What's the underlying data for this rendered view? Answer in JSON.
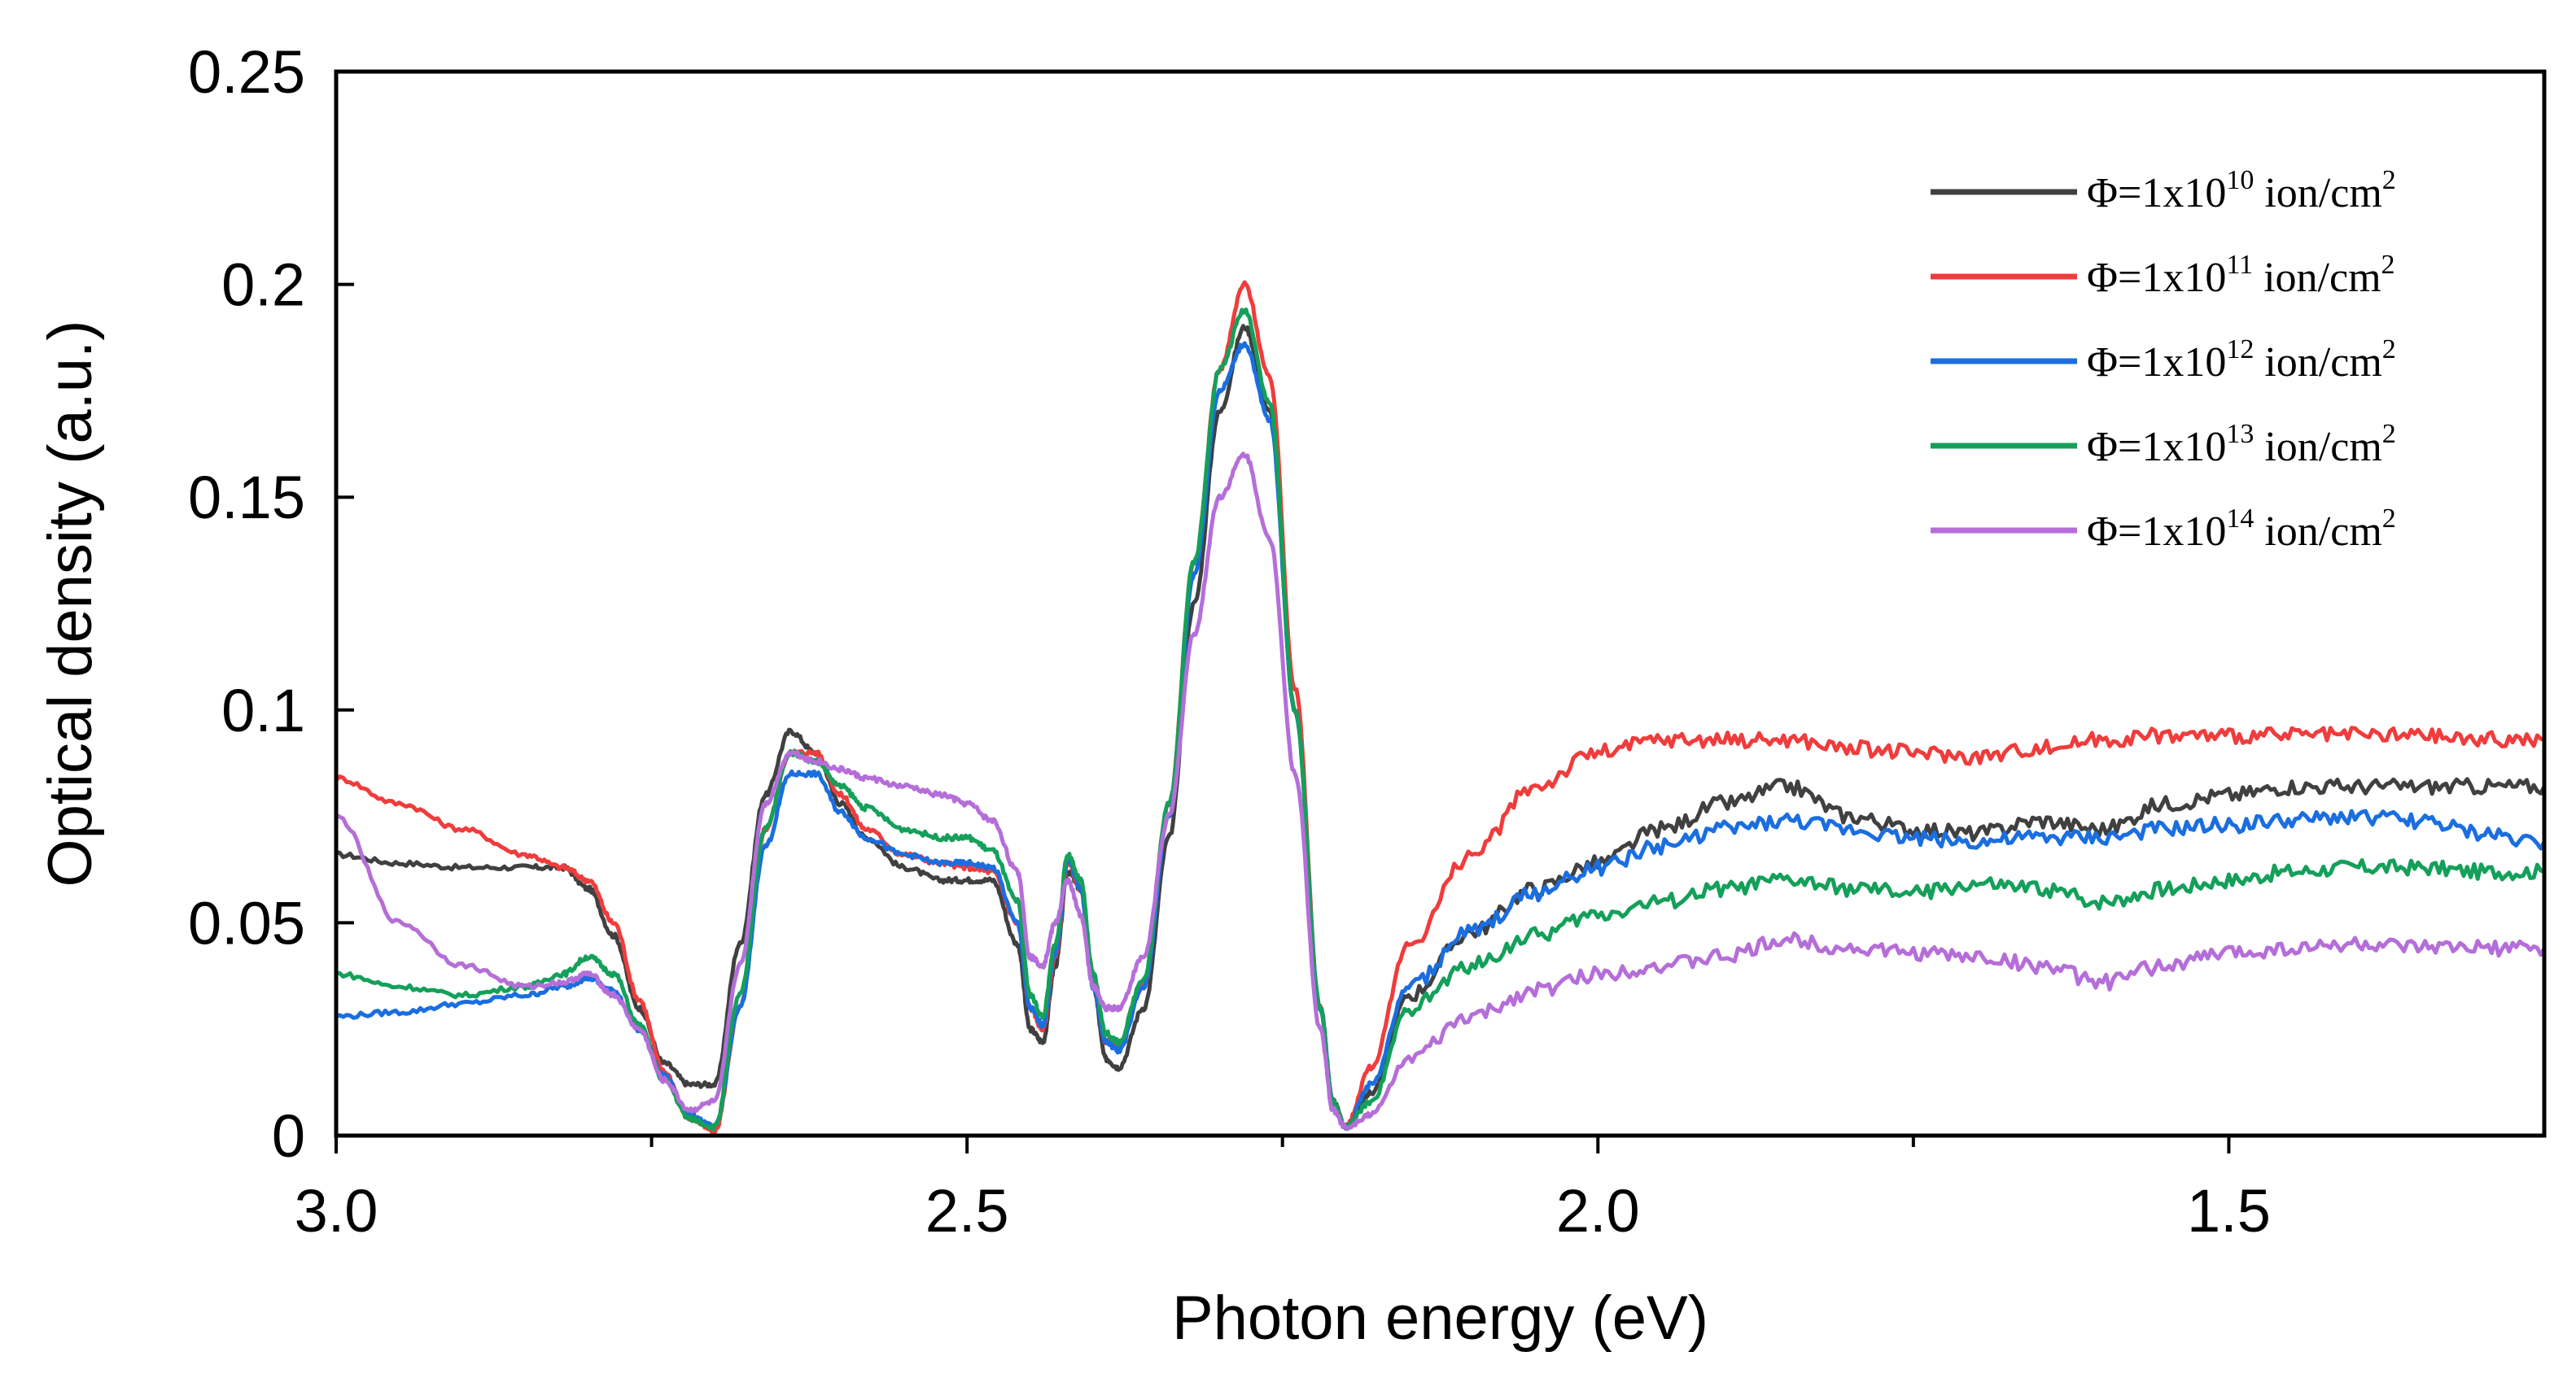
{
  "chart_data": {
    "type": "line",
    "title": "",
    "xlabel": "Photon energy (eV)",
    "ylabel": "Optical density (a.u.)",
    "xlim": [
      3.0,
      1.25
    ],
    "ylim": [
      0,
      0.25
    ],
    "x_reversed": true,
    "grid": false,
    "legend_position": "top-right",
    "x_ticks": [
      3.0,
      2.5,
      2.0,
      1.5
    ],
    "x_tick_labels": [
      "3.0",
      "2.5",
      "2.0",
      "1.5"
    ],
    "x_minor_ticks": [
      2.75,
      2.25,
      1.75
    ],
    "y_ticks": [
      0,
      0.05,
      0.1,
      0.15,
      0.2,
      0.25
    ],
    "y_tick_labels": [
      "0",
      "0.05",
      "0.1",
      "0.15",
      "0.2",
      "0.25"
    ],
    "x": [
      3.0,
      2.95,
      2.9,
      2.85,
      2.82,
      2.8,
      2.78,
      2.76,
      2.74,
      2.72,
      2.7,
      2.68,
      2.66,
      2.64,
      2.62,
      2.6,
      2.58,
      2.55,
      2.52,
      2.5,
      2.48,
      2.46,
      2.45,
      2.44,
      2.43,
      2.42,
      2.41,
      2.4,
      2.39,
      2.38,
      2.36,
      2.34,
      2.32,
      2.3,
      2.28,
      2.26,
      2.24,
      2.22,
      2.21,
      2.2,
      2.18,
      2.15,
      2.1,
      2.05,
      2.0,
      1.95,
      1.9,
      1.85,
      1.8,
      1.75,
      1.7,
      1.65,
      1.6,
      1.55,
      1.5,
      1.45,
      1.4,
      1.35,
      1.3,
      1.25
    ],
    "series": [
      {
        "name": "Φ=1x10",
        "exponent": "10",
        "unit": "ion/cm",
        "unit_power": "2",
        "color": "#404040",
        "values": [
          0.066,
          0.064,
          0.063,
          0.063,
          0.063,
          0.058,
          0.047,
          0.03,
          0.017,
          0.012,
          0.012,
          0.045,
          0.08,
          0.095,
          0.09,
          0.078,
          0.07,
          0.063,
          0.06,
          0.06,
          0.06,
          0.045,
          0.025,
          0.022,
          0.04,
          0.062,
          0.058,
          0.035,
          0.018,
          0.016,
          0.03,
          0.07,
          0.125,
          0.17,
          0.19,
          0.17,
          0.1,
          0.03,
          0.008,
          0.002,
          0.01,
          0.033,
          0.048,
          0.058,
          0.064,
          0.072,
          0.078,
          0.082,
          0.075,
          0.072,
          0.071,
          0.074,
          0.072,
          0.078,
          0.08,
          0.082,
          0.082,
          0.082,
          0.082,
          0.082
        ]
      },
      {
        "name": "Φ=1x10",
        "exponent": "11",
        "unit": "ion/cm",
        "unit_power": "2",
        "color": "#f03c3c",
        "values": [
          0.084,
          0.078,
          0.072,
          0.066,
          0.063,
          0.06,
          0.05,
          0.032,
          0.015,
          0.004,
          0.001,
          0.03,
          0.072,
          0.09,
          0.09,
          0.08,
          0.072,
          0.066,
          0.064,
          0.063,
          0.062,
          0.05,
          0.03,
          0.025,
          0.042,
          0.064,
          0.058,
          0.036,
          0.022,
          0.021,
          0.035,
          0.078,
          0.135,
          0.18,
          0.2,
          0.178,
          0.105,
          0.03,
          0.008,
          0.002,
          0.016,
          0.045,
          0.066,
          0.082,
          0.09,
          0.093,
          0.093,
          0.093,
          0.091,
          0.09,
          0.089,
          0.091,
          0.093,
          0.094,
          0.094,
          0.094,
          0.094,
          0.094,
          0.093,
          0.093
        ]
      },
      {
        "name": "Φ=1x10",
        "exponent": "12",
        "unit": "ion/cm",
        "unit_power": "2",
        "color": "#1a6ee0",
        "values": [
          0.028,
          0.029,
          0.031,
          0.033,
          0.035,
          0.037,
          0.034,
          0.025,
          0.014,
          0.005,
          0.002,
          0.03,
          0.068,
          0.085,
          0.085,
          0.076,
          0.07,
          0.066,
          0.064,
          0.064,
          0.063,
          0.05,
          0.03,
          0.026,
          0.043,
          0.065,
          0.058,
          0.035,
          0.022,
          0.02,
          0.035,
          0.075,
          0.132,
          0.175,
          0.186,
          0.168,
          0.1,
          0.03,
          0.008,
          0.002,
          0.012,
          0.035,
          0.048,
          0.057,
          0.063,
          0.068,
          0.072,
          0.074,
          0.072,
          0.07,
          0.069,
          0.07,
          0.07,
          0.072,
          0.073,
          0.074,
          0.075,
          0.074,
          0.071,
          0.069
        ]
      },
      {
        "name": "Φ=1x10",
        "exponent": "13",
        "unit": "ion/cm",
        "unit_power": "2",
        "color": "#14a05a",
        "values": [
          0.038,
          0.035,
          0.033,
          0.035,
          0.038,
          0.042,
          0.038,
          0.026,
          0.013,
          0.004,
          0.002,
          0.033,
          0.072,
          0.09,
          0.088,
          0.082,
          0.077,
          0.072,
          0.07,
          0.07,
          0.067,
          0.055,
          0.033,
          0.028,
          0.045,
          0.066,
          0.06,
          0.038,
          0.024,
          0.022,
          0.037,
          0.078,
          0.135,
          0.18,
          0.194,
          0.172,
          0.1,
          0.03,
          0.008,
          0.002,
          0.008,
          0.03,
          0.04,
          0.047,
          0.052,
          0.055,
          0.058,
          0.06,
          0.058,
          0.057,
          0.059,
          0.058,
          0.055,
          0.058,
          0.06,
          0.062,
          0.063,
          0.063,
          0.062,
          0.062
        ]
      },
      {
        "name": "Φ=1x10",
        "exponent": "14",
        "unit": "ion/cm",
        "unit_power": "2",
        "color": "#b56ed9",
        "values": [
          0.075,
          0.05,
          0.04,
          0.035,
          0.036,
          0.038,
          0.033,
          0.025,
          0.013,
          0.006,
          0.008,
          0.04,
          0.078,
          0.09,
          0.088,
          0.086,
          0.084,
          0.082,
          0.08,
          0.078,
          0.074,
          0.062,
          0.042,
          0.04,
          0.05,
          0.06,
          0.052,
          0.035,
          0.03,
          0.03,
          0.042,
          0.075,
          0.118,
          0.15,
          0.16,
          0.14,
          0.085,
          0.025,
          0.006,
          0.002,
          0.005,
          0.018,
          0.028,
          0.034,
          0.038,
          0.04,
          0.042,
          0.046,
          0.044,
          0.043,
          0.042,
          0.04,
          0.036,
          0.04,
          0.043,
          0.044,
          0.045,
          0.044,
          0.044,
          0.044
        ]
      }
    ]
  }
}
